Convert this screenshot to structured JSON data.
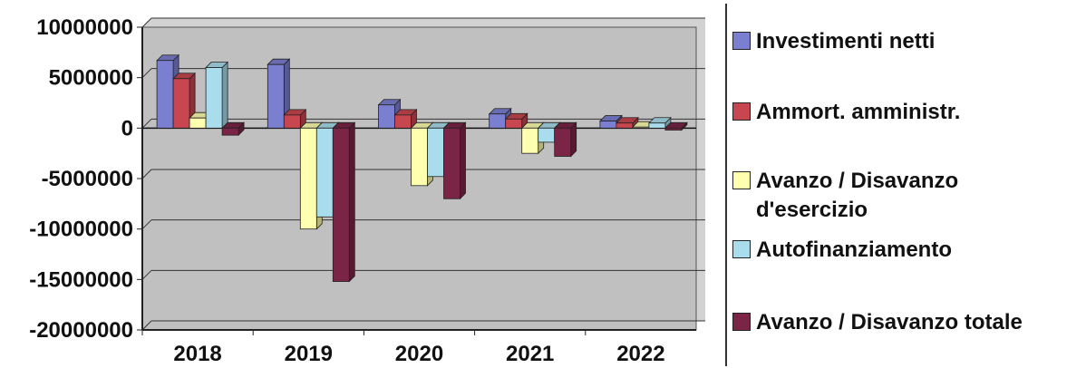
{
  "chart_data": {
    "type": "bar",
    "categories": [
      "2018",
      "2019",
      "2020",
      "2021",
      "2022"
    ],
    "series": [
      {
        "name": "Investimenti netti",
        "color": "#7b7fd0",
        "values": [
          6700000,
          6300000,
          2300000,
          1400000,
          700000
        ]
      },
      {
        "name": "Ammort. amministr.",
        "color": "#c8464f",
        "values": [
          4900000,
          1300000,
          1300000,
          900000,
          500000
        ]
      },
      {
        "name": "Avanzo / Disavanzo d'esercizio",
        "color": "#ffffb0",
        "values": [
          1000000,
          -10000000,
          -5700000,
          -2500000,
          100000
        ]
      },
      {
        "name": "Autofinanziamento",
        "color": "#a9dcec",
        "values": [
          6000000,
          -8800000,
          -4800000,
          -1400000,
          500000
        ]
      },
      {
        "name": "Avanzo / Disavanzo totale",
        "color": "#7a2446",
        "values": [
          -700000,
          -15200000,
          -7000000,
          -2800000,
          -200000
        ]
      }
    ],
    "yticks": [
      10000000,
      5000000,
      0,
      -5000000,
      -10000000,
      -15000000,
      -20000000
    ],
    "ytick_labels": [
      "10000000",
      "5000000",
      "0",
      "-5000000",
      "-10000000",
      "-15000000",
      "-20000000"
    ],
    "ylim": [
      -20000000,
      10000000
    ],
    "grid": true,
    "legend_position": "right",
    "plot_background": "#c0c0c0",
    "title": "",
    "xlabel": "",
    "ylabel": ""
  }
}
